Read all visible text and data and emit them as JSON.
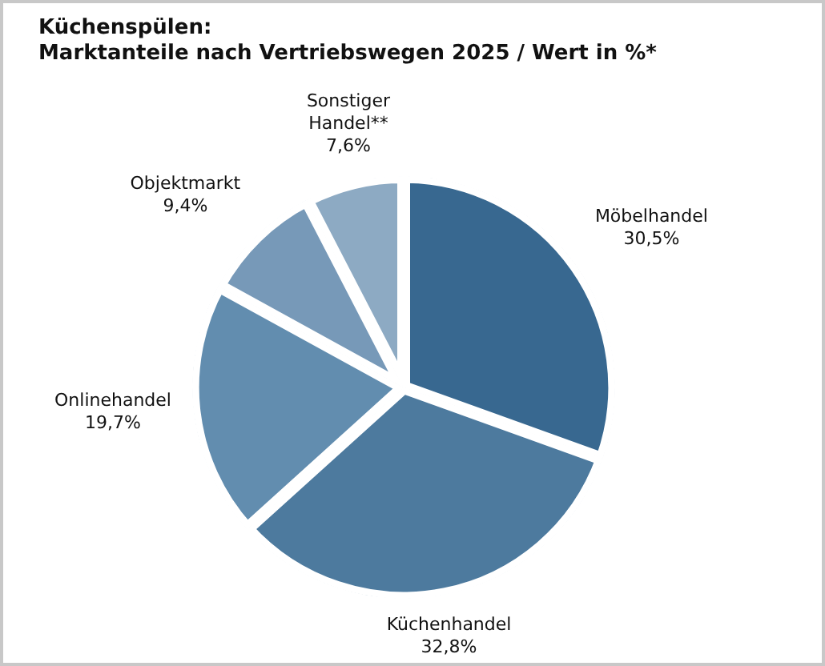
{
  "chart_data": {
    "type": "pie",
    "title": "Küchenspülen:",
    "subtitle": "Marktanteile nach Vertriebswegen 2025 / Wert in %*",
    "categories": [
      "Möbelhandel",
      "Küchenhandel",
      "Onlinehandel",
      "Objektmarkt",
      "Sonstiger Handel**"
    ],
    "values": [
      30.5,
      32.8,
      19.7,
      9.4,
      7.6
    ],
    "value_labels": [
      "30,5%",
      "32,8%",
      "19,7%",
      "9,4%",
      "7,6%"
    ],
    "colors": [
      "#386890",
      "#4d7a9e",
      "#628daf",
      "#7799b8",
      "#8daac3"
    ],
    "legend": false
  }
}
